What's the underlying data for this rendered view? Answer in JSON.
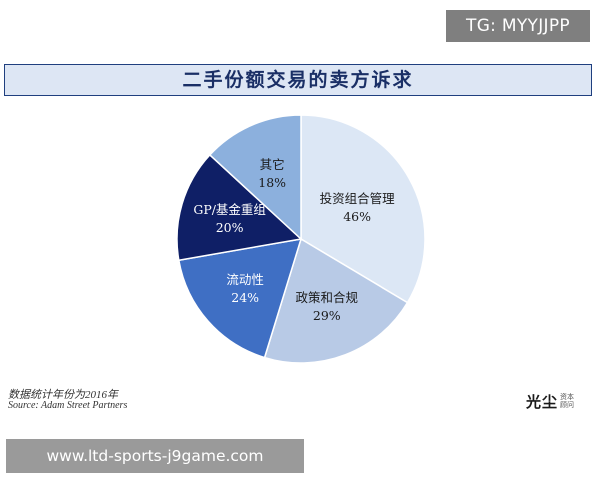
{
  "watermark": {
    "tag": "TG: MYYJJPP",
    "url": "www.ltd-sports-j9game.com"
  },
  "brand": {
    "main": "光尘",
    "side_top": "资本",
    "side_bottom": "顾问"
  },
  "notes": {
    "line1": "数据统计年份为2016年",
    "line2": "Source: Adam Street Partners"
  },
  "colors": {
    "title_bg": "#dde6f4",
    "title_text": "#1a2f66",
    "border": "#1f3f7f"
  },
  "chart_data": {
    "type": "pie",
    "title": "二手份额交易的卖方诉求",
    "slices": [
      {
        "label": "投资组合管理",
        "display": "46%",
        "value": 46,
        "color": "#dce7f5"
      },
      {
        "label": "政策和合规",
        "display": "29%",
        "value": 29,
        "color": "#b8cae6"
      },
      {
        "label": "流动性",
        "display": "24%",
        "value": 24,
        "color": "#3f6fc4"
      },
      {
        "label": "GP/基金重组",
        "display": "20%",
        "value": 20,
        "color": "#0f1f66"
      },
      {
        "label": "其它",
        "display": "18%",
        "value": 18,
        "color": "#8cb0dd"
      }
    ]
  }
}
